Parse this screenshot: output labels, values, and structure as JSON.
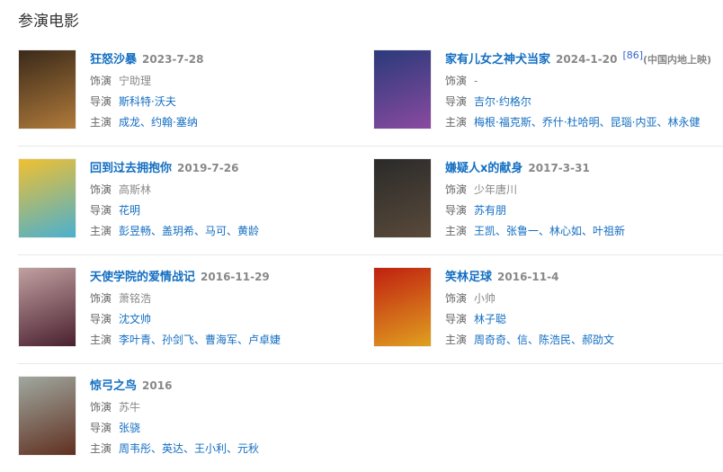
{
  "heading": "参演电影",
  "labels": {
    "role": "饰演",
    "director": "导演",
    "cast": "主演"
  },
  "films": [
    {
      "title": "狂怒沙暴",
      "date": "2023-7-28",
      "role": "宁助理",
      "director": "斯科特·沃夫",
      "cast": "成龙、约翰·塞纳",
      "poster_colors": [
        "#3a2a1a",
        "#b07a3a"
      ]
    },
    {
      "title": "家有儿女之神犬当家",
      "date": "2024-1-20",
      "ref": "[86]",
      "note": "(中国内地上映)",
      "role": "-",
      "director": "吉尔·约格尔",
      "cast": "梅根·福克斯、乔什·杜哈明、昆瑙·内亚、林永健",
      "poster_colors": [
        "#2a3a7a",
        "#8a4aa0"
      ]
    },
    {
      "title": "回到过去拥抱你",
      "date": "2019-7-26",
      "role": "高斯林",
      "director": "花明",
      "cast": "彭昱畅、盖玥希、马可、黄龄",
      "poster_colors": [
        "#f0c030",
        "#4ab0d0"
      ]
    },
    {
      "title": "嫌疑人x的献身",
      "date": "2017-3-31",
      "role": "少年唐川",
      "director": "苏有朋",
      "cast": "王凯、张鲁一、林心如、叶祖新",
      "poster_colors": [
        "#2a2a2a",
        "#5a4a3a"
      ]
    },
    {
      "title": "天使学院的爱情战记",
      "date": "2016-11-29",
      "role": "萧铭浩",
      "director": "沈文帅",
      "cast": "李叶青、孙剑飞、曹海军、卢卓婕",
      "poster_colors": [
        "#c0a0a0",
        "#4a2030"
      ]
    },
    {
      "title": "笑林足球",
      "date": "2016-11-4",
      "role": "小帅",
      "director": "林子聪",
      "cast": "周奇奇、信、陈浩民、郝劭文",
      "poster_colors": [
        "#c02010",
        "#e0a020"
      ]
    },
    {
      "title": "惊弓之鸟",
      "date": "2016",
      "role": "苏牛",
      "director": "张骁",
      "cast": "周韦彤、英达、王小利、元秋",
      "poster_colors": [
        "#a0a8a0",
        "#603020"
      ]
    }
  ]
}
